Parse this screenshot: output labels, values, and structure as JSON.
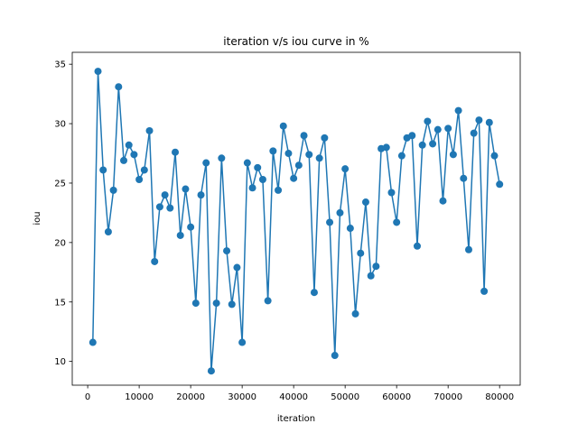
{
  "chart_data": {
    "type": "line",
    "title": "iteration v/s iou curve in %",
    "xlabel": "iteration",
    "ylabel": "iou",
    "xlim": [
      -3000,
      84000
    ],
    "ylim": [
      8.0,
      36.0
    ],
    "x_ticks": [
      0,
      10000,
      20000,
      30000,
      40000,
      50000,
      60000,
      70000,
      80000
    ],
    "y_ticks": [
      10,
      15,
      20,
      25,
      30,
      35
    ],
    "grid": false,
    "legend": "none",
    "marker": "circle",
    "color": "#1f77b4",
    "series": [
      {
        "x": [
          1000,
          2000,
          3000,
          4000,
          5000,
          6000,
          7000,
          8000,
          9000,
          10000,
          11000,
          12000,
          13000,
          14000,
          15000,
          16000,
          17000,
          18000,
          19000,
          20000,
          21000,
          22000,
          23000,
          24000,
          25000,
          26000,
          27000,
          28000,
          29000,
          30000,
          31000,
          32000,
          33000,
          34000,
          35000,
          36000,
          37000,
          38000,
          39000,
          40000,
          41000,
          42000,
          43000,
          44000,
          45000,
          46000,
          47000,
          48000,
          49000,
          50000,
          51000,
          52000,
          53000,
          54000,
          55000,
          56000,
          57000,
          58000,
          59000,
          60000,
          61000,
          62000,
          63000,
          64000,
          65000,
          66000,
          67000,
          68000,
          69000,
          70000,
          71000,
          72000,
          73000,
          74000,
          75000,
          76000,
          77000,
          78000,
          79000,
          80000
        ],
        "y": [
          11.6,
          34.4,
          26.1,
          20.9,
          24.4,
          33.1,
          26.9,
          28.2,
          27.4,
          25.3,
          26.1,
          29.4,
          18.4,
          23.0,
          24.0,
          22.9,
          27.6,
          20.6,
          24.5,
          21.3,
          14.9,
          24.0,
          26.7,
          9.2,
          14.9,
          27.1,
          19.3,
          14.8,
          17.9,
          11.6,
          26.7,
          24.6,
          26.3,
          25.3,
          15.1,
          27.7,
          24.4,
          29.8,
          27.5,
          25.4,
          26.5,
          29.0,
          27.4,
          15.8,
          27.1,
          28.8,
          21.7,
          10.5,
          22.5,
          26.2,
          21.2,
          14.0,
          19.1,
          23.4,
          17.2,
          18.0,
          27.9,
          28.0,
          24.2,
          21.7,
          27.3,
          28.8,
          29.0,
          19.7,
          28.2,
          30.2,
          28.3,
          29.5,
          23.5,
          29.6,
          27.4,
          31.1,
          25.4,
          19.4,
          29.2,
          30.3,
          15.9,
          30.1,
          27.3,
          24.9
        ]
      }
    ]
  }
}
